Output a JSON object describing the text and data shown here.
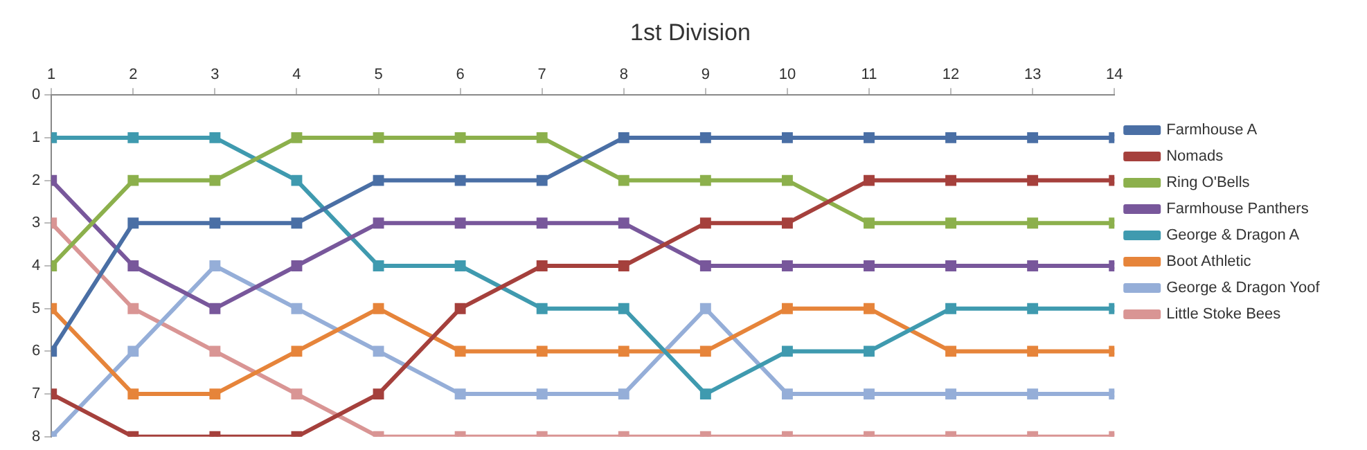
{
  "chart_data": {
    "type": "line",
    "title": "1st Division",
    "x": [
      1,
      2,
      3,
      4,
      5,
      6,
      7,
      8,
      9,
      10,
      11,
      12,
      13,
      14
    ],
    "xlim": [
      1,
      14
    ],
    "xticks": [
      1,
      2,
      3,
      4,
      5,
      6,
      7,
      8,
      9,
      10,
      11,
      12,
      13,
      14
    ],
    "ylim": [
      8,
      0
    ],
    "yticks": [
      0,
      1,
      2,
      3,
      4,
      5,
      6,
      7,
      8
    ],
    "grid": false,
    "legend": "right",
    "marker": "square",
    "line_style": "solid",
    "series": [
      {
        "name": "Farmhouse A",
        "color": "#4a6fa5",
        "values": [
          6,
          3,
          3,
          3,
          2,
          2,
          2,
          1,
          1,
          1,
          1,
          1,
          1,
          1
        ]
      },
      {
        "name": "Nomads",
        "color": "#a5403c",
        "values": [
          7,
          8,
          8,
          8,
          7,
          5,
          4,
          4,
          3,
          3,
          2,
          2,
          2,
          2
        ]
      },
      {
        "name": "Ring O'Bells",
        "color": "#8cb04c",
        "values": [
          4,
          2,
          2,
          1,
          1,
          1,
          1,
          2,
          2,
          2,
          3,
          3,
          3,
          3
        ]
      },
      {
        "name": "Farmhouse Panthers",
        "color": "#78579b",
        "values": [
          2,
          4,
          5,
          4,
          3,
          3,
          3,
          3,
          4,
          4,
          4,
          4,
          4,
          4
        ]
      },
      {
        "name": "George & Dragon A",
        "color": "#3f9aaf",
        "values": [
          1,
          1,
          1,
          2,
          4,
          4,
          5,
          5,
          7,
          6,
          6,
          5,
          5,
          5
        ]
      },
      {
        "name": "Boot Athletic",
        "color": "#e6843a",
        "values": [
          5,
          7,
          7,
          6,
          5,
          6,
          6,
          6,
          6,
          5,
          5,
          6,
          6,
          6
        ]
      },
      {
        "name": "George & Dragon Yoof",
        "color": "#95aed8",
        "values": [
          8,
          6,
          4,
          5,
          6,
          7,
          7,
          7,
          5,
          7,
          7,
          7,
          7,
          7
        ]
      },
      {
        "name": "Little Stoke Bees",
        "color": "#d99594",
        "values": [
          3,
          5,
          6,
          7,
          8,
          8,
          8,
          8,
          8,
          8,
          8,
          8,
          8,
          8
        ]
      }
    ]
  }
}
